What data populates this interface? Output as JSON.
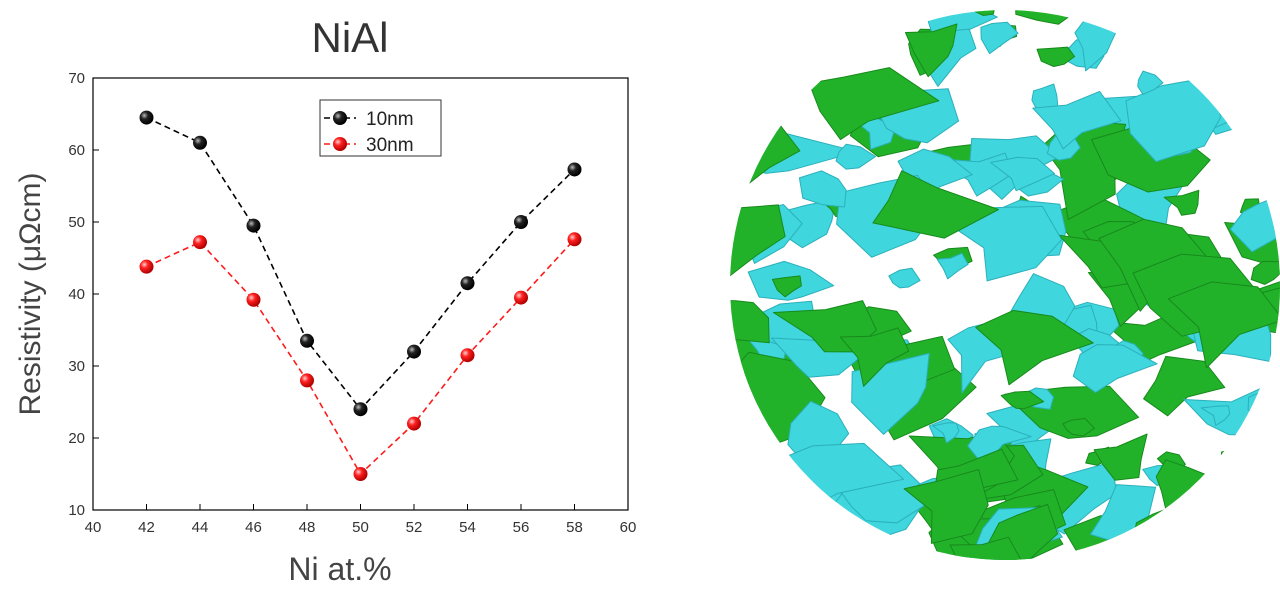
{
  "chart_data": {
    "type": "line",
    "title": "NiAl",
    "xlabel": "Ni at.%",
    "ylabel": "Resistivity (μΩcm)",
    "xlim": [
      40,
      60
    ],
    "ylim": [
      10,
      70
    ],
    "xticks": [
      "40",
      "42",
      "44",
      "46",
      "48",
      "50",
      "52",
      "54",
      "56",
      "58",
      "60"
    ],
    "yticks": [
      "10",
      "20",
      "30",
      "40",
      "50",
      "60",
      "70"
    ],
    "x": [
      42,
      44,
      46,
      48,
      50,
      52,
      54,
      56,
      58
    ],
    "series": [
      {
        "name": "10nm",
        "color": "#000000",
        "values": [
          64.5,
          61.0,
          49.5,
          33.5,
          24.0,
          32.0,
          41.5,
          50.0,
          57.3
        ]
      },
      {
        "name": "30nm",
        "color": "#ff1a1a",
        "values": [
          43.8,
          47.2,
          39.2,
          28.0,
          15.0,
          22.0,
          31.5,
          39.5,
          47.6
        ]
      }
    ],
    "legend": "top-center",
    "grid": false
  },
  "image": {
    "colors": {
      "green": "#22b22a",
      "cyan": "#3fd6de"
    }
  }
}
